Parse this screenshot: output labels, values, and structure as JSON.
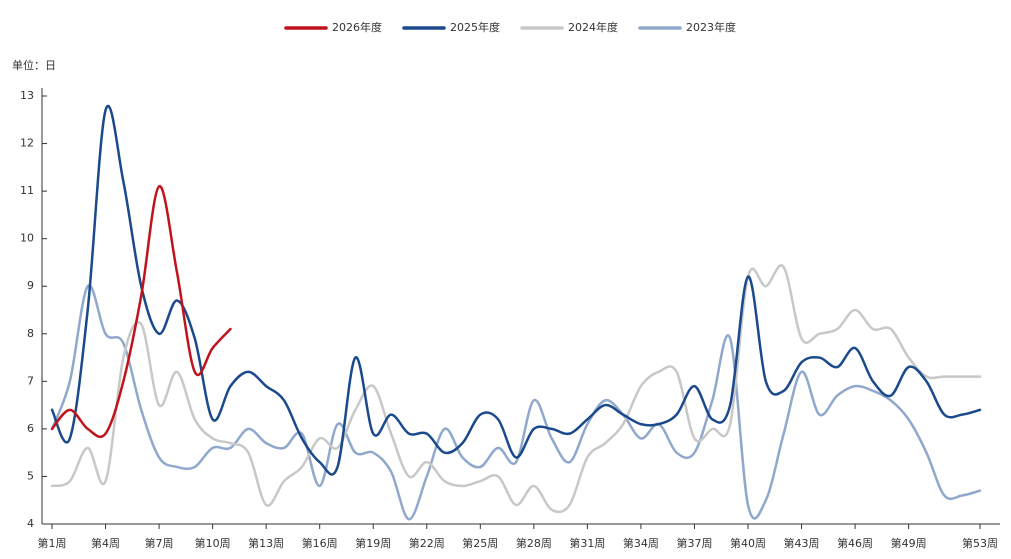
{
  "chart_data": {
    "type": "line",
    "y_axis_label": "单位：日",
    "categories": [
      "第1周",
      null,
      null,
      "第4周",
      null,
      null,
      "第7周",
      null,
      null,
      "第10周",
      null,
      null,
      "第13周",
      null,
      null,
      "第16周",
      null,
      null,
      "第19周",
      null,
      null,
      "第22周",
      null,
      null,
      "第25周",
      null,
      null,
      "第28周",
      null,
      null,
      "第31周",
      null,
      null,
      "第34周",
      null,
      null,
      "第37周",
      null,
      null,
      "第40周",
      null,
      null,
      "第43周",
      null,
      null,
      "第46周",
      null,
      null,
      "第49周",
      null,
      null,
      null,
      "第53周"
    ],
    "ylim": [
      4,
      13
    ],
    "yticks": [
      4,
      5,
      6,
      7,
      8,
      9,
      10,
      11,
      12,
      13
    ],
    "grid": false,
    "legend": "top",
    "series": [
      {
        "name": "2026年度",
        "color": "#c0141c",
        "values": [
          6.0,
          6.4,
          6.0,
          5.9,
          7.0,
          8.8,
          11.1,
          9.3,
          7.2,
          7.7,
          8.1,
          null,
          null,
          null,
          null,
          null,
          null,
          null,
          null,
          null,
          null,
          null,
          null,
          null,
          null,
          null,
          null,
          null,
          null,
          null,
          null,
          null,
          null,
          null,
          null,
          null,
          null,
          null,
          null,
          null,
          null,
          null,
          null,
          null,
          null,
          null,
          null,
          null,
          null,
          null,
          null,
          null,
          null
        ]
      },
      {
        "name": "2025年度",
        "color": "#1b4a8c",
        "values": [
          6.4,
          5.8,
          8.5,
          12.7,
          11.2,
          9.0,
          8.0,
          8.7,
          7.9,
          6.2,
          6.9,
          7.2,
          6.9,
          6.6,
          5.8,
          5.3,
          5.2,
          7.5,
          5.9,
          6.3,
          5.9,
          5.9,
          5.5,
          5.7,
          6.3,
          6.2,
          5.4,
          6.0,
          6.0,
          5.9,
          6.2,
          6.5,
          6.3,
          6.1,
          6.1,
          6.3,
          6.9,
          6.2,
          6.5,
          9.2,
          7.0,
          6.8,
          7.4,
          7.5,
          7.3,
          7.7,
          7.0,
          6.7,
          7.3,
          7.0,
          6.3,
          6.3,
          6.4
        ]
      },
      {
        "name": "2024年度",
        "color": "#c8c8c8",
        "values": [
          4.8,
          4.9,
          5.6,
          4.9,
          7.5,
          8.2,
          6.5,
          7.2,
          6.2,
          5.8,
          5.7,
          5.5,
          4.4,
          4.9,
          5.2,
          5.8,
          5.6,
          6.4,
          6.9,
          5.9,
          5.0,
          5.3,
          4.9,
          4.8,
          4.9,
          5.0,
          4.4,
          4.8,
          4.3,
          4.4,
          5.4,
          5.7,
          6.1,
          6.9,
          7.2,
          7.2,
          5.8,
          6.0,
          6.1,
          9.2,
          9.0,
          9.4,
          7.9,
          8.0,
          8.1,
          8.5,
          8.1,
          8.1,
          7.5,
          7.1,
          7.1,
          7.1,
          7.1
        ]
      },
      {
        "name": "2023年度",
        "color": "#8fa8cc",
        "values": [
          6.0,
          7.0,
          9.0,
          8.0,
          7.8,
          6.4,
          5.4,
          5.2,
          5.2,
          5.6,
          5.6,
          6.0,
          5.7,
          5.6,
          5.9,
          4.8,
          6.1,
          5.5,
          5.5,
          5.1,
          4.1,
          5.0,
          6.0,
          5.4,
          5.2,
          5.6,
          5.3,
          6.6,
          5.8,
          5.3,
          6.1,
          6.6,
          6.3,
          5.8,
          6.1,
          5.5,
          5.5,
          6.6,
          7.9,
          4.4,
          4.5,
          5.9,
          7.2,
          6.3,
          6.7,
          6.9,
          6.8,
          6.6,
          6.2,
          5.5,
          4.6,
          4.6,
          4.7
        ]
      }
    ]
  }
}
